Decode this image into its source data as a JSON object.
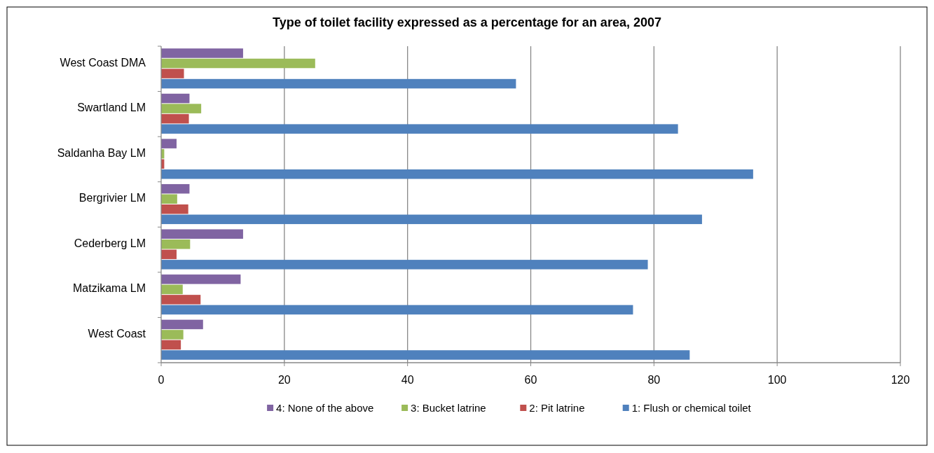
{
  "chart_data": {
    "type": "bar",
    "orientation": "horizontal",
    "title": "Type of toilet facility expressed as a percentage for an area, 2007",
    "categories": [
      "West Coast DMA",
      "Swartland LM",
      "Saldanha Bay LM",
      "Bergrivier LM",
      "Cederberg LM",
      "Matzikama LM",
      "West Coast"
    ],
    "series": [
      {
        "name": "4: None of the above",
        "color": "#8064a2",
        "values": [
          13.3,
          4.6,
          2.5,
          4.6,
          13.3,
          12.9,
          6.8
        ]
      },
      {
        "name": "3: Bucket latrine",
        "color": "#9bbb59",
        "values": [
          25.0,
          6.5,
          0.5,
          2.6,
          4.7,
          3.5,
          3.6
        ]
      },
      {
        "name": "2: Pit latrine",
        "color": "#c0504d",
        "values": [
          3.7,
          4.5,
          0.5,
          4.4,
          2.5,
          6.4,
          3.2
        ]
      },
      {
        "name": "1: Flush or chemical toilet",
        "color": "#4f81bd",
        "values": [
          57.6,
          83.9,
          96.1,
          87.8,
          79.0,
          76.6,
          85.8
        ]
      }
    ],
    "xlim": [
      0,
      120
    ],
    "xticks": [
      0,
      20,
      40,
      60,
      80,
      100,
      120
    ],
    "grid": "x",
    "legend": "bottom"
  }
}
